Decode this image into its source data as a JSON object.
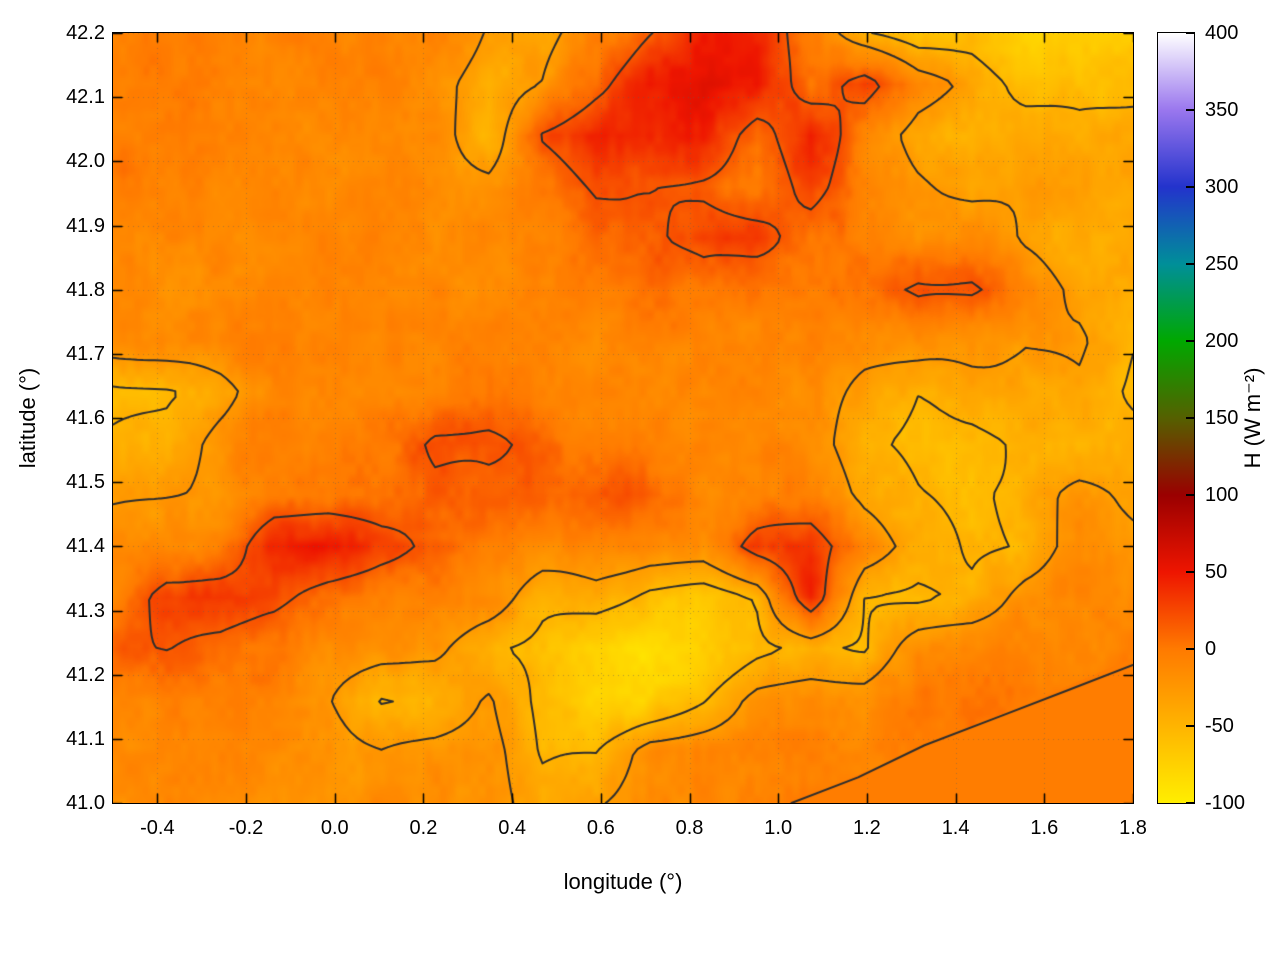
{
  "chart_data": {
    "type": "heatmap",
    "title": "",
    "xlabel": "longitude (°)",
    "ylabel": "latitude (°)",
    "cblabel": "H (W m⁻²)",
    "x_range": [
      -0.5,
      1.8
    ],
    "y_range": [
      41.0,
      42.2
    ],
    "cb_range": [
      -100,
      400
    ],
    "x_ticks": [
      "-0.4",
      "-0.2",
      "0.0",
      "0.2",
      "0.4",
      "0.6",
      "0.8",
      "1.0",
      "1.2",
      "1.4",
      "1.6",
      "1.8"
    ],
    "y_ticks": [
      "41.0",
      "41.1",
      "41.2",
      "41.3",
      "41.4",
      "41.5",
      "41.6",
      "41.7",
      "41.8",
      "41.9",
      "42.0",
      "42.1",
      "42.2"
    ],
    "cb_ticks": [
      "-100",
      "-50",
      "0",
      "50",
      "100",
      "150",
      "200",
      "250",
      "300",
      "350",
      "400"
    ],
    "palette": [
      {
        "v": -100,
        "c": "#ffee00"
      },
      {
        "v": -50,
        "c": "#ffb400"
      },
      {
        "v": 0,
        "c": "#ff7a00"
      },
      {
        "v": 50,
        "c": "#ee1500"
      },
      {
        "v": 100,
        "c": "#9a0000"
      },
      {
        "v": 150,
        "c": "#556000"
      },
      {
        "v": 200,
        "c": "#00a800"
      },
      {
        "v": 250,
        "c": "#008f99"
      },
      {
        "v": 300,
        "c": "#2333cc"
      },
      {
        "v": 350,
        "c": "#9a77ee"
      },
      {
        "v": 400,
        "c": "#ffffff"
      }
    ],
    "grid": {
      "comment": "Sensible heat flux H (W m-2) estimated on a 20x16 lon/lat grid, row 0 = lat 42.2 (top), col 0 = lon -0.5 (left)",
      "values": [
        [
          -12,
          -8,
          -10,
          -6,
          -10,
          -14,
          -10,
          -35,
          -45,
          -10,
          20,
          45,
          40,
          -5,
          -45,
          -60,
          -55,
          -70,
          -75,
          -70
        ],
        [
          -10,
          -6,
          -8,
          -10,
          -8,
          -10,
          -20,
          -50,
          -30,
          10,
          50,
          55,
          45,
          0,
          35,
          -10,
          -30,
          -55,
          -60,
          -55
        ],
        [
          -10,
          -10,
          -8,
          -6,
          -10,
          -12,
          -15,
          -45,
          25,
          45,
          45,
          40,
          5,
          50,
          -5,
          -35,
          -45,
          -40,
          -45,
          -40
        ],
        [
          -8,
          -6,
          -10,
          -8,
          -6,
          -10,
          -12,
          -15,
          10,
          25,
          20,
          10,
          0,
          30,
          -5,
          -20,
          -35,
          -30,
          -40,
          -35
        ],
        [
          -10,
          -8,
          -6,
          -10,
          -8,
          -6,
          -10,
          -8,
          -5,
          5,
          10,
          30,
          25,
          0,
          -10,
          -15,
          -10,
          -35,
          -45,
          -40
        ],
        [
          -8,
          -10,
          -8,
          -6,
          -10,
          -8,
          -6,
          -10,
          -8,
          -5,
          0,
          5,
          -5,
          -8,
          0,
          25,
          20,
          -10,
          -35,
          -45
        ],
        [
          -15,
          -10,
          -8,
          -10,
          -6,
          -8,
          -10,
          -6,
          -8,
          -10,
          -5,
          -8,
          -10,
          -8,
          -15,
          -10,
          -20,
          -30,
          -25,
          -50
        ],
        [
          -55,
          -50,
          -40,
          -15,
          -8,
          -10,
          -8,
          -5,
          0,
          -5,
          -8,
          -10,
          -8,
          -12,
          -30,
          -45,
          -40,
          -45,
          -35,
          -55
        ],
        [
          -50,
          -45,
          -20,
          -10,
          -8,
          -6,
          20,
          25,
          15,
          -5,
          -8,
          -6,
          -10,
          -15,
          -45,
          -50,
          -55,
          -45,
          -50,
          -40
        ],
        [
          -35,
          -30,
          -25,
          -10,
          -8,
          -6,
          10,
          15,
          20,
          15,
          10,
          -5,
          -10,
          -8,
          -35,
          -45,
          -50,
          -40,
          -20,
          -30
        ],
        [
          -15,
          -10,
          -8,
          45,
          50,
          25,
          5,
          -5,
          -8,
          -6,
          -10,
          -8,
          30,
          35,
          -10,
          -40,
          -50,
          -45,
          -15,
          -20
        ],
        [
          -10,
          35,
          40,
          30,
          0,
          -8,
          -10,
          -15,
          -40,
          -35,
          -55,
          -60,
          -50,
          40,
          -50,
          -55,
          -45,
          -15,
          -10,
          -12
        ],
        [
          15,
          20,
          10,
          -5,
          -10,
          -15,
          -20,
          -45,
          -55,
          -75,
          -85,
          -70,
          -55,
          -45,
          -50,
          -15,
          -10,
          -8,
          -10,
          -8
        ],
        [
          -10,
          -8,
          -12,
          -10,
          -20,
          -45,
          -40,
          -20,
          -60,
          -75,
          -70,
          -45,
          -15,
          -10,
          -12,
          -3,
          -3,
          -3,
          -3,
          -3
        ],
        [
          -8,
          -12,
          -10,
          -15,
          -10,
          -25,
          -20,
          -15,
          -55,
          -50,
          -15,
          -10,
          -8,
          -3,
          -3,
          -3,
          -3,
          -3,
          -3,
          -3
        ],
        [
          -12,
          -10,
          -15,
          -10,
          -20,
          -15,
          -25,
          -20,
          -40,
          -30,
          -15,
          -10,
          -8,
          -3,
          -3,
          -3,
          -3,
          -3,
          -3,
          -3
        ]
      ]
    },
    "sea": {
      "lon_start": 1.03,
      "lat_at_start": 41.0,
      "slope": 0.293,
      "value": -3
    },
    "coastline": [
      [
        1.03,
        41.0
      ],
      [
        1.18,
        41.04
      ],
      [
        1.33,
        41.09
      ],
      [
        1.5,
        41.135
      ],
      [
        1.65,
        41.175
      ],
      [
        1.8,
        41.215
      ]
    ],
    "contour_levels": [
      -50,
      -28,
      18
    ],
    "contour_color": "#2e2e2e",
    "grid_line_color": "#787878",
    "background": "#ffffff"
  }
}
